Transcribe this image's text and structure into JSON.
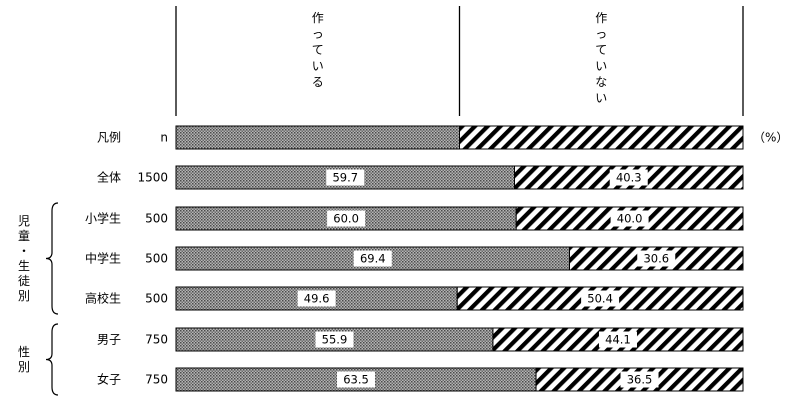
{
  "chart_data": {
    "type": "bar",
    "stacked": true,
    "orientation": "horizontal",
    "percent_scale": true,
    "unit_label": "（%）",
    "n_header": "n",
    "legend_row_label": "凡例",
    "series": [
      {
        "name": "作っている",
        "fill": "dotted-gray"
      },
      {
        "name": "作っていない",
        "fill": "diagonal-hatch"
      }
    ],
    "rows": [
      {
        "label": "全体",
        "n": "1500",
        "values": [
          59.7,
          40.3
        ],
        "labels": [
          "59.7",
          "40.3"
        ]
      },
      {
        "label": "小学生",
        "n": "500",
        "values": [
          60.0,
          40.0
        ],
        "labels": [
          "60.0",
          "40.0"
        ]
      },
      {
        "label": "中学生",
        "n": "500",
        "values": [
          69.4,
          30.6
        ],
        "labels": [
          "69.4",
          "30.6"
        ]
      },
      {
        "label": "高校生",
        "n": "500",
        "values": [
          49.6,
          50.4
        ],
        "labels": [
          "49.6",
          "50.4"
        ]
      },
      {
        "label": "男子",
        "n": "750",
        "values": [
          55.9,
          44.1
        ],
        "labels": [
          "55.9",
          "44.1"
        ]
      },
      {
        "label": "女子",
        "n": "750",
        "values": [
          63.5,
          36.5
        ],
        "labels": [
          "63.5",
          "36.5"
        ]
      }
    ],
    "groups": [
      {
        "label": "児童・生徒別",
        "chars": [
          "児",
          "童",
          "・",
          "生",
          "徒",
          "別"
        ],
        "rows": [
          1,
          2,
          3
        ]
      },
      {
        "label": "性別",
        "chars": [
          "性",
          "別"
        ],
        "rows": [
          4,
          5
        ]
      }
    ]
  }
}
